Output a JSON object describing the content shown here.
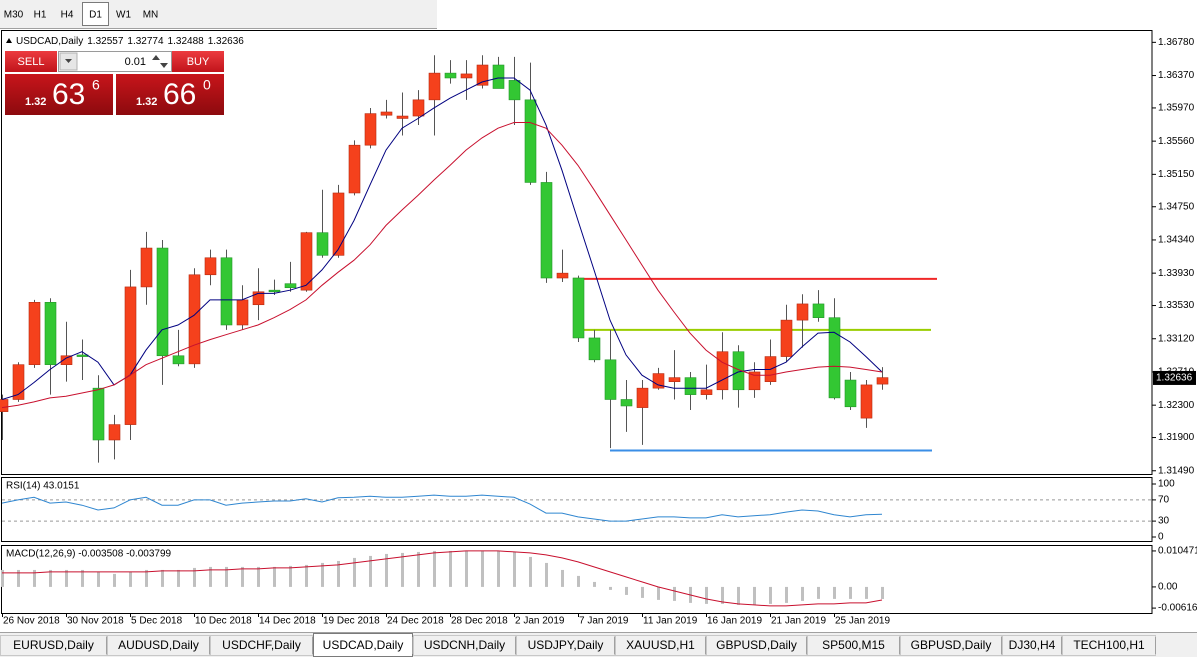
{
  "toolbar": {
    "timeframes": [
      "M30",
      "H1",
      "H4",
      "D1",
      "W1",
      "MN"
    ],
    "active_index": 3
  },
  "trade_panel": {
    "sell": "SELL",
    "buy": "BUY",
    "lot": "0.01",
    "bid": {
      "prefix": "1.32",
      "main": "63",
      "sup": "6"
    },
    "ask": {
      "prefix": "1.32",
      "main": "66",
      "sup": "0"
    }
  },
  "chart_data": [
    {
      "type": "candlestick",
      "title": "USDCAD,Daily",
      "header_values": [
        1.32557,
        1.32774,
        1.32488,
        1.32636
      ],
      "current_price": 1.32636,
      "up_color": "#f5411c",
      "down_color": "#33c733",
      "categories": [
        "26 Nov 2018",
        null,
        null,
        null,
        "30 Nov 2018",
        null,
        null,
        null,
        "5 Dec 2018",
        null,
        null,
        null,
        "10 Dec 2018",
        null,
        null,
        null,
        "14 Dec 2018",
        null,
        null,
        null,
        "19 Dec 2018",
        null,
        null,
        null,
        "24 Dec 2018",
        null,
        null,
        null,
        "28 Dec 2018",
        null,
        null,
        null,
        "2 Jan 2019",
        null,
        null,
        null,
        "7 Jan 2019",
        null,
        null,
        null,
        "11 Jan 2019",
        null,
        null,
        null,
        "16 Jan 2019",
        null,
        null,
        null,
        "21 Jan 2019",
        null,
        null,
        null,
        "25 Jan 2019",
        null,
        null,
        null
      ],
      "open": [
        1.3222,
        1.3237,
        1.328,
        1.3357,
        1.328,
        1.3292,
        1.3251,
        1.3187,
        1.3206,
        1.3376,
        1.3424,
        1.3291,
        1.3281,
        1.3391,
        1.3412,
        1.3329,
        1.3354,
        1.3372,
        1.338,
        1.3372,
        1.3443,
        1.3415,
        1.3492,
        1.3551,
        1.3588,
        1.3584,
        1.3587,
        1.3607,
        1.364,
        1.3634,
        1.3625,
        1.365,
        1.3631,
        1.3607,
        1.3505,
        1.3387,
        1.3387,
        1.3313,
        1.3286,
        1.3237,
        1.3227,
        1.3251,
        1.3259,
        1.3264,
        1.3243,
        1.3249,
        1.3296,
        1.3249,
        1.3259,
        1.329,
        1.3335,
        1.3355,
        1.3338,
        1.3261,
        1.3214,
        1.3256
      ],
      "high": [
        1.3243,
        1.3283,
        1.336,
        1.3362,
        1.3333,
        1.3311,
        1.3267,
        1.3218,
        1.3397,
        1.3444,
        1.3434,
        1.3323,
        1.3399,
        1.3422,
        1.3422,
        1.3378,
        1.3399,
        1.3385,
        1.3407,
        1.3444,
        1.3496,
        1.3502,
        1.3557,
        1.3597,
        1.3607,
        1.3616,
        1.3619,
        1.3662,
        1.3656,
        1.3656,
        1.3662,
        1.366,
        1.366,
        1.3653,
        1.3518,
        1.3422,
        1.339,
        1.3323,
        1.3323,
        1.3261,
        1.3261,
        1.3276,
        1.3298,
        1.3271,
        1.328,
        1.332,
        1.3304,
        1.3283,
        1.3311,
        1.3354,
        1.3367,
        1.3372,
        1.3362,
        1.3271,
        1.3261,
        1.3277
      ],
      "low": [
        1.3187,
        1.3234,
        1.3276,
        1.3243,
        1.3259,
        1.3261,
        1.3159,
        1.3163,
        1.3187,
        1.3354,
        1.3255,
        1.3278,
        1.3276,
        1.3378,
        1.3323,
        1.3323,
        1.3335,
        1.3366,
        1.337,
        1.337,
        1.3412,
        1.3412,
        1.3489,
        1.3547,
        1.3584,
        1.3563,
        1.3576,
        1.3563,
        1.3627,
        1.3607,
        1.3621,
        1.3621,
        1.3576,
        1.3502,
        1.3381,
        1.3382,
        1.3308,
        1.3283,
        1.3177,
        1.3197,
        1.3181,
        1.3249,
        1.3237,
        1.3224,
        1.3237,
        1.3237,
        1.3227,
        1.3239,
        1.3255,
        1.3283,
        1.3301,
        1.3333,
        1.3237,
        1.3224,
        1.3202,
        1.3249
      ],
      "close": [
        1.3237,
        1.328,
        1.3357,
        1.328,
        1.3291,
        1.329,
        1.3187,
        1.3206,
        1.3376,
        1.3424,
        1.3291,
        1.3281,
        1.3391,
        1.3412,
        1.3329,
        1.336,
        1.337,
        1.337,
        1.3375,
        1.3443,
        1.3415,
        1.3492,
        1.3551,
        1.359,
        1.3592,
        1.3587,
        1.3607,
        1.364,
        1.3634,
        1.3639,
        1.365,
        1.3621,
        1.3607,
        1.3505,
        1.3387,
        1.3393,
        1.3313,
        1.3286,
        1.3237,
        1.3229,
        1.3251,
        1.3269,
        1.3264,
        1.3243,
        1.3249,
        1.3296,
        1.3249,
        1.3271,
        1.329,
        1.3335,
        1.3355,
        1.3338,
        1.3239,
        1.3228,
        1.3255,
        1.3264
      ],
      "overlays": [
        {
          "color": "#000080",
          "values": [
            1.3237,
            1.3243,
            1.3258,
            1.3274,
            1.3288,
            1.3296,
            1.3283,
            1.3255,
            1.3267,
            1.3298,
            1.3323,
            1.3329,
            1.3341,
            1.336,
            1.336,
            1.336,
            1.3368,
            1.3368,
            1.3372,
            1.3378,
            1.3397,
            1.3422,
            1.3458,
            1.3502,
            1.3545,
            1.3572,
            1.3584,
            1.3597,
            1.3609,
            1.3619,
            1.3629,
            1.3634,
            1.3634,
            1.3619,
            1.3576,
            1.352,
            1.3458,
            1.3397,
            1.3335,
            1.3292,
            1.3267,
            1.3255,
            1.3251,
            1.3251,
            1.3251,
            1.3261,
            1.3271,
            1.3274,
            1.3274,
            1.3283,
            1.3302,
            1.3319,
            1.332,
            1.3308,
            1.329,
            1.3271
          ]
        },
        {
          "color": "#c8102e",
          "values": [
            1.3227,
            1.323,
            1.3234,
            1.3239,
            1.3241,
            1.3245,
            1.3249,
            1.3255,
            1.3267,
            1.328,
            1.3288,
            1.3296,
            1.3304,
            1.3311,
            1.3317,
            1.3323,
            1.3329,
            1.3338,
            1.3348,
            1.336,
            1.3378,
            1.3394,
            1.3409,
            1.3428,
            1.3452,
            1.3471,
            1.3489,
            1.3508,
            1.3526,
            1.3545,
            1.356,
            1.3572,
            1.3579,
            1.3579,
            1.3572,
            1.3551,
            1.3526,
            1.3496,
            1.3465,
            1.3434,
            1.3403,
            1.3372,
            1.3345,
            1.3319,
            1.3298,
            1.3283,
            1.3274,
            1.3267,
            1.3267,
            1.3271,
            1.3274,
            1.3277,
            1.3278,
            1.3277,
            1.3274,
            1.3271
          ]
        }
      ],
      "levels": [
        {
          "value": 1.3386,
          "color": "#f02828"
        },
        {
          "value": 1.3323,
          "color": "#9acd00"
        },
        {
          "value": 1.3174,
          "color": "#3a8ee6"
        }
      ],
      "ylim": [
        1.3145,
        1.3692
      ],
      "yticks": [
        {
          "value": 1.3678,
          "label": "1.36780"
        },
        {
          "value": 1.3637,
          "label": "1.36370"
        },
        {
          "value": 1.3597,
          "label": "1.35970"
        },
        {
          "value": 1.3556,
          "label": "1.35560"
        },
        {
          "value": 1.3515,
          "label": "1.35150"
        },
        {
          "value": 1.3475,
          "label": "1.34750"
        },
        {
          "value": 1.3434,
          "label": "1.34340"
        },
        {
          "value": 1.3393,
          "label": "1.33930"
        },
        {
          "value": 1.3353,
          "label": "1.33530"
        },
        {
          "value": 1.3312,
          "label": "1.33120"
        },
        {
          "value": 1.3271,
          "label": "1.32710"
        },
        {
          "value": 1.323,
          "label": "1.32300"
        },
        {
          "value": 1.319,
          "label": "1.31900"
        },
        {
          "value": 1.3149,
          "label": "1.31490"
        }
      ]
    },
    {
      "type": "line",
      "title": "RSI(14) 43.0151",
      "ylim": [
        0,
        100
      ],
      "yticks": [
        100,
        70,
        30,
        0
      ],
      "levels": [
        70,
        30
      ],
      "series": [
        {
          "color": "#2f86d0",
          "values": [
            64,
            70,
            75,
            64,
            66,
            60,
            51,
            55,
            70,
            75,
            60,
            60,
            70,
            70,
            60,
            64,
            66,
            68,
            68,
            72,
            66,
            74,
            75,
            77,
            75,
            75,
            77,
            79,
            77,
            77,
            79,
            77,
            75,
            62,
            45,
            45,
            38,
            34,
            30,
            30,
            34,
            38,
            38,
            36,
            36,
            42,
            38,
            40,
            42,
            47,
            51,
            49,
            42,
            38,
            42,
            43
          ]
        }
      ]
    },
    {
      "type": "macd",
      "title": "MACD(12,26,9) -0.003508 -0.003799",
      "ylim": [
        -0.0073,
        0.0122
      ],
      "yticks": [
        0.010471,
        {
          "value": 0,
          "label": "0.00"
        },
        -0.006164
      ],
      "histogram": {
        "color": "#c0c0c0",
        "values": [
          0.00494,
          0.00494,
          0.00494,
          0.00494,
          0.00494,
          0.00494,
          0.00436,
          0.00378,
          0.00436,
          0.00494,
          0.00494,
          0.00494,
          0.00553,
          0.00582,
          0.00582,
          0.00582,
          0.00582,
          0.00582,
          0.00611,
          0.0064,
          0.00698,
          0.00756,
          0.00844,
          0.00902,
          0.0096,
          0.00989,
          0.01018,
          0.01047,
          0.01047,
          0.01047,
          0.01047,
          0.01047,
          0.01018,
          0.00873,
          0.00698,
          0.00494,
          0.0032,
          0.00145,
          -0.00087,
          -0.00233,
          -0.0032,
          -0.00378,
          -0.00407,
          -0.00465,
          -0.00494,
          -0.00494,
          -0.00524,
          -0.00524,
          -0.00494,
          -0.00465,
          -0.00407,
          -0.00349,
          -0.00349,
          -0.00349,
          -0.00349,
          -0.00351
        ]
      },
      "signal": {
        "color": "#c8102e",
        "values": [
          0.00407,
          0.00407,
          0.00407,
          0.00436,
          0.00436,
          0.00436,
          0.00436,
          0.00436,
          0.00436,
          0.00436,
          0.00465,
          0.00465,
          0.00465,
          0.00494,
          0.00494,
          0.00524,
          0.00524,
          0.00553,
          0.00553,
          0.00582,
          0.00611,
          0.0064,
          0.00698,
          0.00756,
          0.00814,
          0.00873,
          0.00931,
          0.00989,
          0.01018,
          0.01047,
          0.01047,
          0.01047,
          0.01018,
          0.00989,
          0.00931,
          0.00844,
          0.00727,
          0.00582,
          0.00436,
          0.00291,
          0.00145,
          0,
          -0.00116,
          -0.00233,
          -0.00349,
          -0.00436,
          -0.00494,
          -0.00524,
          -0.00553,
          -0.00553,
          -0.00524,
          -0.00494,
          -0.00494,
          -0.00465,
          -0.00465,
          -0.0038
        ]
      }
    }
  ],
  "tabs": {
    "items": [
      "EURUSD,Daily",
      "AUDUSD,Daily",
      "USDCHF,Daily",
      "USDCAD,Daily",
      "USDCNH,Daily",
      "USDJPY,Daily",
      "XAUUSD,H1",
      "GBPUSD,Daily",
      "SP500,M15",
      "GBPUSD,Daily",
      "DJ30,H4",
      "TECH100,H1"
    ],
    "active_index": 3
  }
}
